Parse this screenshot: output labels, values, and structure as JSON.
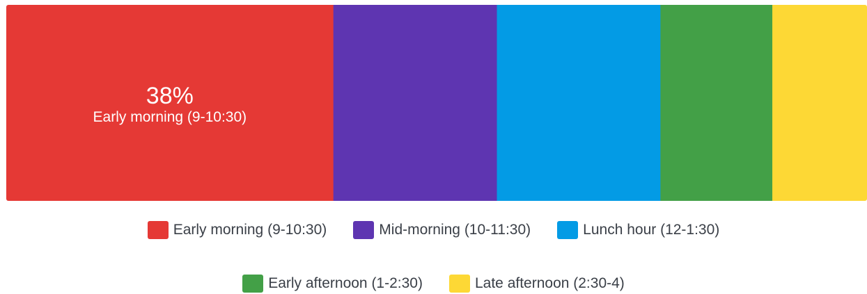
{
  "chart_data": {
    "type": "bar",
    "orientation": "horizontal",
    "stacked": true,
    "normalized_to_percent": true,
    "categories": [
      "Early morning (9-10:30)",
      "Mid-morning (10-11:30)",
      "Lunch hour (12-1:30)",
      "Early afternoon (1-2:30)",
      "Late afternoon (2:30-4)"
    ],
    "values": [
      38,
      19,
      19,
      13,
      11
    ],
    "colors": [
      "#e53935",
      "#5e35b1",
      "#039be5",
      "#43a047",
      "#fdd835"
    ],
    "highlight": {
      "index": 0,
      "value_label": "38%",
      "category_label": "Early morning (9-10:30)"
    },
    "legend_position": "bottom",
    "grid": false,
    "title": "",
    "xlabel": "",
    "ylabel": ""
  }
}
